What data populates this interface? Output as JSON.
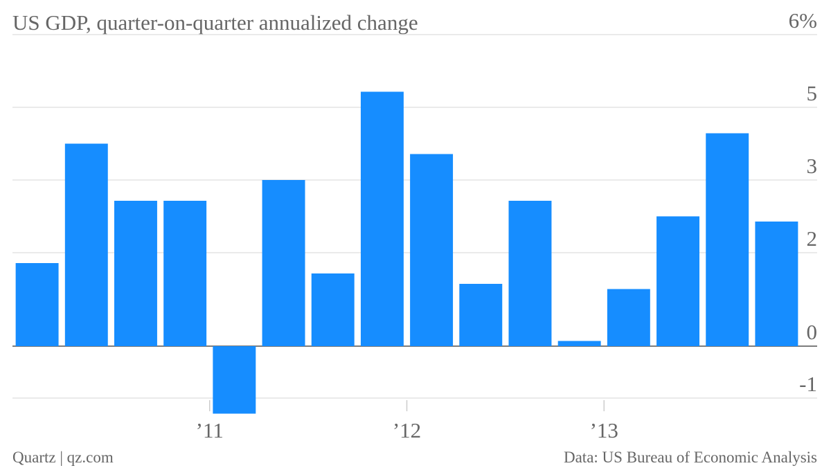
{
  "chart_data": {
    "type": "bar",
    "title": "US GDP, quarter-on-quarter annualized change",
    "source": "Data: US Bureau of Economic Analysis",
    "credit": "Quartz | qz.com",
    "categories": [
      null,
      null,
      null,
      null,
      "’11",
      null,
      null,
      null,
      "’12",
      null,
      null,
      null,
      "’13",
      null,
      null,
      null
    ],
    "values": [
      1.6,
      3.9,
      2.8,
      2.8,
      -1.3,
      3.2,
      1.4,
      4.9,
      3.7,
      1.2,
      2.8,
      0.1,
      1.1,
      2.5,
      4.1,
      2.4
    ],
    "color": "#168dff",
    "ylim": [
      -1.2,
      6
    ],
    "yticks": [
      {
        "value": 6,
        "label": "6%"
      },
      {
        "value": 4.6,
        "label": "5"
      },
      {
        "value": 3.2,
        "label": "3"
      },
      {
        "value": 1.8,
        "label": "2"
      },
      0,
      -1
    ],
    "grid": true
  }
}
